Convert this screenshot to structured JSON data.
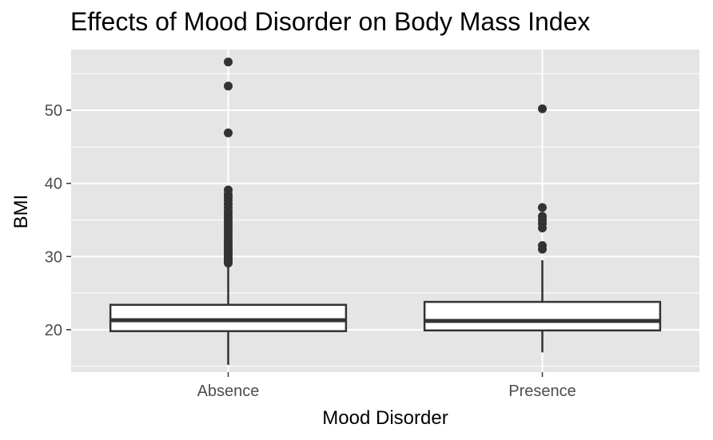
{
  "chart_data": {
    "type": "boxplot",
    "title": "Effects of Mood Disorder on Body Mass Index",
    "xlabel": "Mood Disorder",
    "ylabel": "BMI",
    "ylim": [
      14.2,
      58.3
    ],
    "yticks": [
      20,
      30,
      40,
      50
    ],
    "grid": true,
    "colors": {
      "panel": "#e5e5e5",
      "grid": "#ffffff",
      "box_fill": "#ffffff",
      "box_stroke": "#333333",
      "points": "#333333",
      "ticks": "#4d4d4d"
    },
    "categories": [
      "Absence",
      "Presence"
    ],
    "boxes": [
      {
        "category": "Absence",
        "whisker_low": 15.2,
        "q1": 19.8,
        "median": 21.3,
        "q3": 23.4,
        "whisker_high": 29.0,
        "outliers": [
          29.1,
          29.3,
          29.5,
          29.7,
          30.0,
          30.2,
          30.5,
          30.8,
          31.0,
          31.3,
          31.6,
          31.9,
          32.2,
          32.6,
          33.0,
          33.4,
          33.8,
          34.2,
          34.6,
          35.0,
          35.4,
          35.8,
          36.2,
          36.7,
          37.2,
          37.7,
          38.1,
          38.5,
          39.1,
          46.9,
          53.3,
          56.6
        ]
      },
      {
        "category": "Presence",
        "whisker_low": 16.9,
        "q1": 19.9,
        "median": 21.2,
        "q3": 23.8,
        "whisker_high": 29.5,
        "outliers": [
          31.0,
          31.5,
          33.9,
          34.5,
          35.0,
          35.5,
          36.7,
          50.2
        ]
      }
    ]
  }
}
